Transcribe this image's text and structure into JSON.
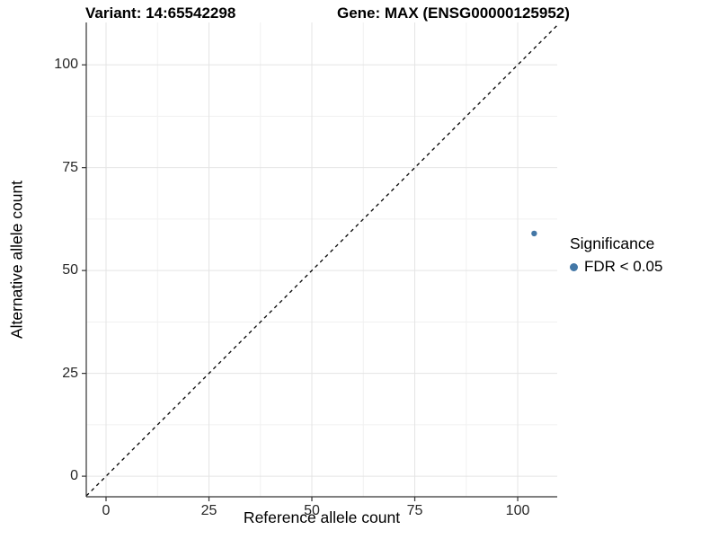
{
  "figure": {
    "title_variant": "Variant: 14:65542298",
    "title_gene": "Gene: MAX (ENSG00000125952)"
  },
  "chart_data": {
    "type": "scatter",
    "title": "Variant: 14:65542298   Gene: MAX (ENSG00000125952)",
    "xlabel": "Reference allele count",
    "ylabel": "Alternative allele count",
    "x_ticks": [
      0,
      25,
      50,
      75,
      100
    ],
    "y_ticks": [
      0,
      25,
      50,
      75,
      100
    ],
    "xlim": [
      -4.8,
      109.6
    ],
    "ylim": [
      -5.0,
      110.3
    ],
    "minor_grid_step": 12.5,
    "grid": "major and minor gridlines, light gray on white panel",
    "legend_position": "right",
    "series": [
      {
        "name": "FDR < 0.05",
        "color": "#4377a6",
        "points": [
          {
            "x": 104,
            "y": 59
          }
        ]
      }
    ],
    "reference_line": {
      "kind": "identity y = x",
      "style": "dashed",
      "color": "#000000"
    }
  },
  "legend": {
    "title": "Significance",
    "items": [
      {
        "label": "FDR < 0.05",
        "color": "#4377a6"
      }
    ]
  },
  "colors": {
    "point": "#4377a6",
    "grid_major": "#e4e4e4",
    "grid_minor": "#f1f1f1",
    "axis_line": "#333333",
    "tick_mark": "#333333",
    "tick_text": "#262626",
    "title_text": "#000000",
    "background": "#ffffff"
  }
}
